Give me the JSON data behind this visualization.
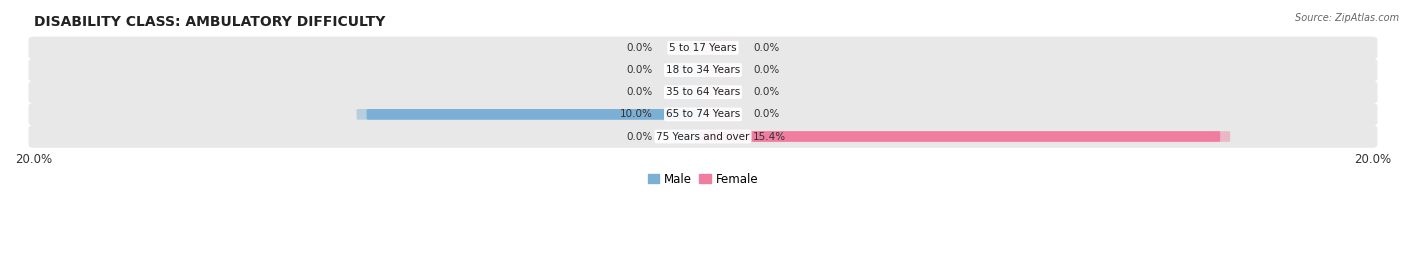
{
  "title": "DISABILITY CLASS: AMBULATORY DIFFICULTY",
  "source": "Source: ZipAtlas.com",
  "categories": [
    "5 to 17 Years",
    "18 to 34 Years",
    "35 to 64 Years",
    "65 to 74 Years",
    "75 Years and over"
  ],
  "male_values": [
    0.0,
    0.0,
    0.0,
    10.0,
    0.0
  ],
  "female_values": [
    0.0,
    0.0,
    0.0,
    0.0,
    15.4
  ],
  "xlim": 20.0,
  "male_color": "#7bafd4",
  "female_color": "#f07ca0",
  "row_bg_color": "#e8e8e8",
  "bar_bg_color": "#d8d8d8",
  "label_color": "#333333",
  "title_fontsize": 10,
  "tick_fontsize": 8.5,
  "label_fontsize": 7.5,
  "legend_fontsize": 8.5,
  "figsize": [
    14.06,
    2.69
  ],
  "dpi": 100
}
